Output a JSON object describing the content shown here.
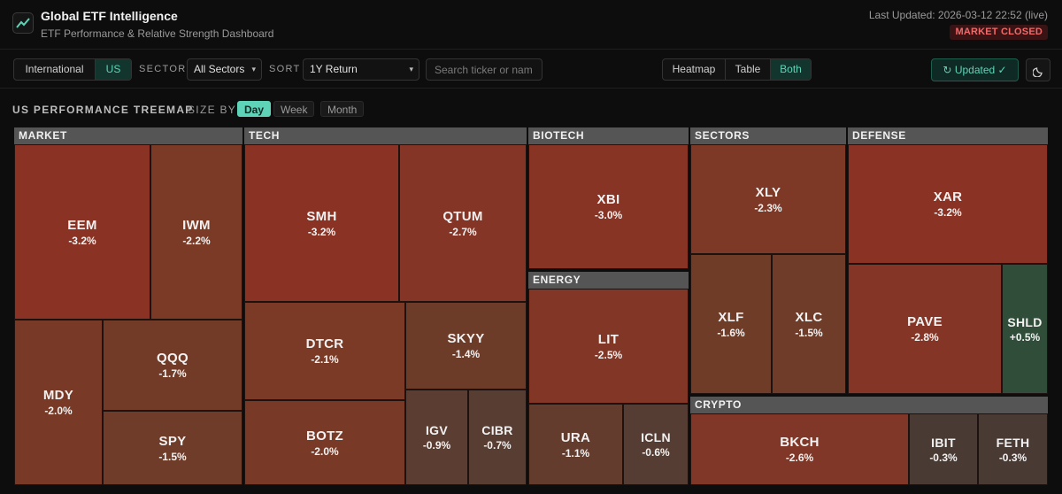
{
  "header": {
    "app_title": "Global ETF Intelligence",
    "app_subtitle": "ETF Performance & Relative Strength Dashboard",
    "last_updated": "Last Updated: 2026-03-12 22:52 (live)",
    "market_status": "MARKET CLOSED"
  },
  "controls": {
    "region_tabs": [
      "International",
      "US"
    ],
    "region_active": "US",
    "sector_label": "SECTOR",
    "sector_value": "All Sectors",
    "sort_label": "SORT",
    "sort_value": "1Y Return",
    "search_placeholder": "Search ticker or nam",
    "view_tabs": [
      "Heatmap",
      "Table",
      "Both"
    ],
    "view_active": "Both",
    "updated_label": "Updated ✓"
  },
  "treemap": {
    "title": "US PERFORMANCE TREEMAP",
    "size_by_label": "SIZE BY",
    "size_options": [
      "Day",
      "Week",
      "Month"
    ],
    "size_active": "Day",
    "colors": {
      "neg_strong": "#8a3324",
      "neg_mid": "#7a3d28",
      "neg_weak": "#5a3c32",
      "pos": "#2e5a3c",
      "header": "#555555"
    },
    "groups": [
      {
        "name": "MARKET",
        "tiles": [
          {
            "ticker": "EEM",
            "change": "-3.2%"
          },
          {
            "ticker": "IWM",
            "change": "-2.2%"
          },
          {
            "ticker": "MDY",
            "change": "-2.0%"
          },
          {
            "ticker": "QQQ",
            "change": "-1.7%"
          },
          {
            "ticker": "SPY",
            "change": "-1.5%"
          }
        ]
      },
      {
        "name": "TECH",
        "tiles": [
          {
            "ticker": "SMH",
            "change": "-3.2%"
          },
          {
            "ticker": "QTUM",
            "change": "-2.7%"
          },
          {
            "ticker": "DTCR",
            "change": "-2.1%"
          },
          {
            "ticker": "SKYY",
            "change": "-1.4%"
          },
          {
            "ticker": "BOTZ",
            "change": "-2.0%"
          },
          {
            "ticker": "IGV",
            "change": "-0.9%"
          },
          {
            "ticker": "CIBR",
            "change": "-0.7%"
          }
        ]
      },
      {
        "name": "BIOTECH",
        "tiles": [
          {
            "ticker": "XBI",
            "change": "-3.0%"
          }
        ]
      },
      {
        "name": "ENERGY",
        "tiles": [
          {
            "ticker": "LIT",
            "change": "-2.5%"
          },
          {
            "ticker": "URA",
            "change": "-1.1%"
          },
          {
            "ticker": "ICLN",
            "change": "-0.6%"
          }
        ]
      },
      {
        "name": "SECTORS",
        "tiles": [
          {
            "ticker": "XLY",
            "change": "-2.3%"
          },
          {
            "ticker": "XLF",
            "change": "-1.6%"
          },
          {
            "ticker": "XLC",
            "change": "-1.5%"
          }
        ]
      },
      {
        "name": "DEFENSE",
        "tiles": [
          {
            "ticker": "XAR",
            "change": "-3.2%"
          },
          {
            "ticker": "PAVE",
            "change": "-2.8%"
          },
          {
            "ticker": "SHLD",
            "change": "+0.5%"
          }
        ]
      },
      {
        "name": "CRYPTO",
        "tiles": [
          {
            "ticker": "BKCH",
            "change": "-2.6%"
          },
          {
            "ticker": "IBIT",
            "change": "-0.3%"
          },
          {
            "ticker": "FETH",
            "change": "-0.3%"
          }
        ]
      }
    ]
  }
}
